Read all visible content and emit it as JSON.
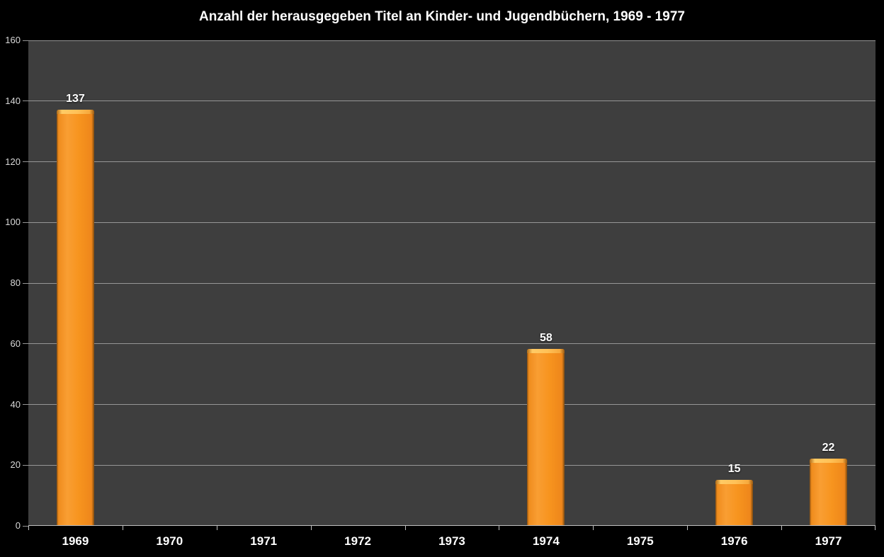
{
  "chart_data": {
    "type": "bar",
    "title": "Anzahl der herausgegeben Titel an Kinder- und Jugendbüchern, 1969 - 1977",
    "categories": [
      "1969",
      "1970",
      "1971",
      "1972",
      "1973",
      "1974",
      "1975",
      "1976",
      "1977"
    ],
    "values": [
      137,
      0,
      0,
      0,
      0,
      58,
      0,
      15,
      22
    ],
    "data_labels_shown": [
      "137",
      "58",
      "15",
      "22"
    ],
    "xlabel": "",
    "ylabel": "",
    "ylim": [
      0,
      160
    ],
    "y_ticks": [
      0,
      20,
      40,
      60,
      80,
      100,
      120,
      140,
      160
    ],
    "grid": "horizontal",
    "legend": "none",
    "colors": {
      "background": "#000000",
      "plot_background": "#3e3e3e",
      "bar_fill": "#f7941e",
      "bar_highlight": "#ffc157",
      "bar_edge": "#8a5012",
      "gridline": "#969696",
      "axis_line": "#c0c0c0",
      "title_text": "#ffffff",
      "tick_text": "#d9d9d9",
      "category_text": "#ffffff",
      "value_label_text": "#ffffff"
    }
  }
}
